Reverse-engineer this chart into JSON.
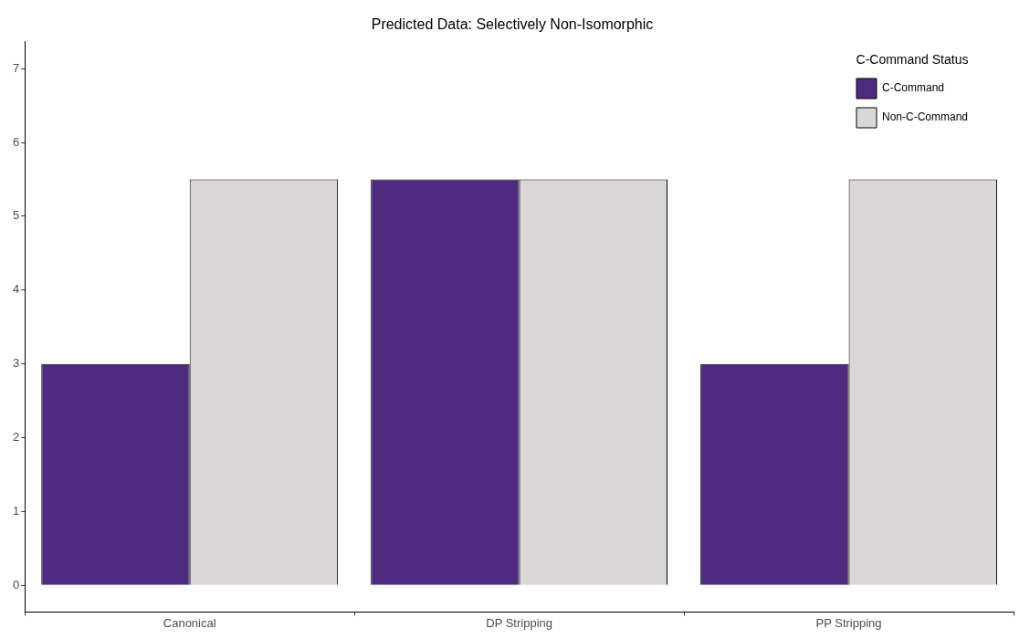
{
  "chart_data": {
    "type": "bar",
    "title": "Predicted Data: Selectively Non-Isomorphic",
    "categories": [
      "Canonical",
      "DP Stripping",
      "PP Stripping"
    ],
    "series": [
      {
        "name": "C-Command",
        "color": "#4f2a81",
        "values": [
          3,
          5.5,
          3
        ]
      },
      {
        "name": "Non-C-Command",
        "color": "#d9d7d8",
        "values": [
          5.5,
          5.5,
          5.5
        ]
      }
    ],
    "legend_title": "C-Command Status",
    "legend": "top right",
    "grid": false,
    "ylim": [
      -0.36,
      7.37
    ],
    "yticks": [
      0,
      1,
      2,
      3,
      4,
      5,
      6,
      7
    ]
  }
}
